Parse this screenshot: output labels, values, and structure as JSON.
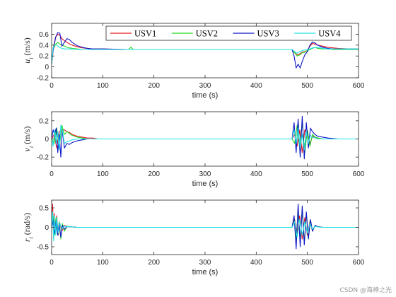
{
  "watermark": "CSDN @海神之光",
  "colors": {
    "USV1": "#e8141e",
    "USV2": "#22d622",
    "USV3": "#0b16c4",
    "USV4": "#22e3e8",
    "axes": "#262626"
  },
  "chart_data": [
    {
      "type": "line",
      "ylabel": "u_i (m/s)",
      "xlabel": "time (s)",
      "xlim": [
        0,
        600
      ],
      "ylim": [
        -0.2,
        0.8
      ],
      "xticks": [
        "0",
        "100",
        "200",
        "300",
        "400",
        "500",
        "600"
      ],
      "yticks": [
        "-0.2",
        "0",
        "0.2",
        "0.4",
        "0.6"
      ],
      "legend": {
        "location": "top-right",
        "orientation": "horizontal",
        "entries": [
          "USV1",
          "USV2",
          "USV3",
          "USV4"
        ]
      },
      "series": [
        {
          "name": "USV1",
          "x": [
            0,
            3,
            8,
            12,
            16,
            20,
            25,
            30,
            35,
            40,
            50,
            60,
            70,
            80,
            100,
            150,
            200,
            300,
            400,
            470,
            475,
            480,
            485,
            490,
            495,
            500,
            505,
            510,
            515,
            520,
            530,
            540,
            550,
            560,
            580,
            600
          ],
          "y": [
            0.05,
            0.35,
            0.55,
            0.6,
            0.58,
            0.52,
            0.48,
            0.45,
            0.42,
            0.4,
            0.37,
            0.35,
            0.34,
            0.33,
            0.33,
            0.32,
            0.32,
            0.32,
            0.32,
            0.32,
            0.26,
            0.22,
            0.24,
            0.27,
            0.28,
            0.3,
            0.38,
            0.43,
            0.42,
            0.4,
            0.38,
            0.36,
            0.35,
            0.34,
            0.33,
            0.33
          ]
        },
        {
          "name": "USV2",
          "x": [
            0,
            3,
            8,
            12,
            16,
            20,
            25,
            30,
            35,
            40,
            50,
            60,
            70,
            80,
            100,
            150,
            155,
            160,
            200,
            300,
            400,
            470,
            475,
            480,
            485,
            490,
            495,
            500,
            505,
            510,
            515,
            520,
            530,
            540,
            550,
            560,
            580,
            600
          ],
          "y": [
            0.05,
            0.33,
            0.42,
            0.45,
            0.42,
            0.4,
            0.38,
            0.36,
            0.35,
            0.34,
            0.33,
            0.32,
            0.32,
            0.32,
            0.32,
            0.32,
            0.36,
            0.32,
            0.32,
            0.32,
            0.32,
            0.32,
            0.26,
            0.2,
            0.22,
            0.26,
            0.27,
            0.3,
            0.32,
            0.34,
            0.36,
            0.34,
            0.33,
            0.33,
            0.32,
            0.32,
            0.32,
            0.32
          ]
        },
        {
          "name": "USV3",
          "x": [
            0,
            3,
            8,
            12,
            16,
            20,
            25,
            30,
            35,
            40,
            45,
            50,
            60,
            70,
            80,
            100,
            150,
            200,
            300,
            400,
            470,
            474,
            478,
            482,
            486,
            490,
            495,
            500,
            505,
            510,
            515,
            520,
            530,
            540,
            550,
            560,
            580,
            600
          ],
          "y": [
            0.05,
            0.3,
            0.55,
            0.63,
            0.62,
            0.38,
            0.45,
            0.52,
            0.5,
            0.45,
            0.42,
            0.39,
            0.36,
            0.34,
            0.33,
            0.33,
            0.32,
            0.32,
            0.32,
            0.32,
            0.32,
            0.2,
            -0.02,
            0.05,
            -0.02,
            0.1,
            0.22,
            0.28,
            0.4,
            0.46,
            0.44,
            0.4,
            0.36,
            0.34,
            0.33,
            0.33,
            0.33,
            0.33
          ]
        },
        {
          "name": "USV4",
          "x": [
            0,
            3,
            6,
            10,
            15,
            20,
            25,
            30,
            40,
            50,
            60,
            80,
            100,
            150,
            200,
            300,
            400,
            470,
            475,
            480,
            485,
            490,
            495,
            500,
            505,
            510,
            520,
            530,
            540,
            550,
            560,
            580,
            600
          ],
          "y": [
            0.05,
            0.35,
            0.42,
            0.4,
            0.36,
            0.34,
            0.33,
            0.33,
            0.33,
            0.32,
            0.32,
            0.32,
            0.32,
            0.32,
            0.32,
            0.32,
            0.32,
            0.32,
            0.28,
            0.25,
            0.28,
            0.3,
            0.31,
            0.32,
            0.33,
            0.35,
            0.36,
            0.34,
            0.33,
            0.33,
            0.33,
            0.33,
            0.33
          ]
        }
      ]
    },
    {
      "type": "line",
      "ylabel": "v_i (m/s)",
      "xlabel": "time (s)",
      "xlim": [
        0,
        600
      ],
      "ylim": [
        -0.3,
        0.3
      ],
      "xticks": [
        "0",
        "100",
        "200",
        "300",
        "400",
        "500",
        "600"
      ],
      "yticks": [
        "-0.2",
        "0",
        "0.2"
      ],
      "series": [
        {
          "name": "USV1",
          "x": [
            0,
            5,
            10,
            15,
            20,
            25,
            30,
            35,
            40,
            50,
            60,
            70,
            80,
            90,
            100,
            120,
            200,
            300,
            400,
            470,
            475,
            480,
            485,
            490,
            495,
            500,
            505,
            510,
            515,
            520,
            530,
            540,
            560,
            600
          ],
          "y": [
            0,
            0.05,
            -0.1,
            0.08,
            0.1,
            0.1,
            0.08,
            0.07,
            0.05,
            0.03,
            0.02,
            0.01,
            0.01,
            0.0,
            0.0,
            0.0,
            0.0,
            0.0,
            0.0,
            0.0,
            0.05,
            -0.08,
            0.1,
            -0.15,
            0.1,
            0.05,
            -0.05,
            0.03,
            0.02,
            0.01,
            0.0,
            0.0,
            0.0,
            0.0
          ]
        },
        {
          "name": "USV2",
          "x": [
            0,
            5,
            10,
            15,
            20,
            25,
            30,
            35,
            40,
            50,
            60,
            70,
            80,
            90,
            100,
            120,
            200,
            300,
            400,
            470,
            475,
            480,
            485,
            490,
            495,
            500,
            505,
            510,
            515,
            520,
            530,
            540,
            560,
            600
          ],
          "y": [
            0,
            -0.05,
            0.12,
            -0.1,
            0.15,
            0.05,
            0.08,
            0.06,
            0.04,
            0.02,
            0.01,
            0.0,
            0.0,
            0.0,
            0.0,
            0.0,
            0.0,
            0.0,
            0.0,
            0.0,
            -0.05,
            0.15,
            -0.1,
            0.18,
            -0.15,
            0.1,
            -0.08,
            0.05,
            0.02,
            0.01,
            0.0,
            0.0,
            0.0,
            0.0
          ]
        },
        {
          "name": "USV3",
          "x": [
            0,
            3,
            6,
            9,
            12,
            15,
            18,
            21,
            25,
            30,
            35,
            40,
            50,
            60,
            70,
            80,
            90,
            100,
            120,
            200,
            300,
            400,
            470,
            474,
            478,
            482,
            486,
            490,
            494,
            498,
            502,
            506,
            510,
            515,
            520,
            530,
            540,
            560,
            600
          ],
          "y": [
            0,
            0.1,
            0.05,
            0.12,
            -0.15,
            0.05,
            -0.2,
            0.1,
            -0.1,
            -0.05,
            -0.06,
            -0.04,
            -0.02,
            -0.01,
            0.0,
            0.0,
            0.0,
            0.0,
            0.0,
            0.0,
            0.0,
            0.0,
            0.0,
            0.18,
            -0.15,
            0.22,
            -0.2,
            0.25,
            -0.22,
            0.18,
            -0.1,
            0.12,
            0.08,
            0.05,
            0.03,
            0.02,
            0.01,
            0.0,
            0.0
          ]
        },
        {
          "name": "USV4",
          "x": [
            0,
            3,
            6,
            9,
            12,
            15,
            18,
            21,
            25,
            30,
            35,
            40,
            50,
            60,
            70,
            80,
            90,
            100,
            120,
            200,
            300,
            400,
            470,
            474,
            478,
            482,
            486,
            490,
            494,
            498,
            502,
            506,
            510,
            515,
            520,
            530,
            540,
            560,
            600
          ],
          "y": [
            0,
            -0.08,
            0.1,
            -0.05,
            0.08,
            -0.12,
            0.15,
            0.1,
            -0.05,
            -0.03,
            -0.02,
            -0.01,
            0.0,
            0.0,
            0.0,
            0.0,
            0.0,
            0.0,
            0.0,
            0.0,
            0.0,
            0.0,
            0.0,
            0.1,
            -0.05,
            0.12,
            -0.1,
            0.05,
            -0.12,
            0.08,
            -0.05,
            0.04,
            0.02,
            0.01,
            0.0,
            0.0,
            0.0,
            0.0,
            0.0
          ]
        }
      ]
    },
    {
      "type": "line",
      "ylabel": "r_i (rad/s)",
      "xlabel": "time (s)",
      "xlim": [
        0,
        600
      ],
      "ylim": [
        -0.7,
        0.7
      ],
      "xticks": [
        "0",
        "100",
        "200",
        "300",
        "400",
        "500",
        "600"
      ],
      "yticks": [
        "-0.5",
        "0",
        "0.5"
      ],
      "series": [
        {
          "name": "USV1",
          "x": [
            0,
            2,
            4,
            6,
            8,
            10,
            13,
            16,
            20,
            25,
            30,
            40,
            50,
            100,
            200,
            300,
            400,
            470,
            475,
            480,
            485,
            490,
            495,
            500,
            505,
            510,
            515,
            520,
            530,
            600
          ],
          "y": [
            0,
            0.6,
            -0.3,
            0.35,
            -0.15,
            0.3,
            -0.2,
            0.1,
            -0.1,
            0.05,
            0.02,
            0.01,
            0.0,
            0.0,
            0.0,
            0.0,
            0.0,
            0.0,
            0.2,
            -0.2,
            0.3,
            -0.3,
            0.25,
            -0.2,
            0.15,
            -0.1,
            0.05,
            0.02,
            0.0,
            0.0
          ]
        },
        {
          "name": "USV2",
          "x": [
            0,
            3,
            6,
            9,
            12,
            15,
            18,
            21,
            25,
            30,
            40,
            50,
            100,
            200,
            300,
            400,
            470,
            474,
            478,
            482,
            486,
            490,
            494,
            498,
            502,
            506,
            510,
            515,
            520,
            530,
            600
          ],
          "y": [
            0,
            0.3,
            -0.2,
            0.25,
            -0.2,
            0.15,
            -0.3,
            0.1,
            -0.1,
            0.03,
            0.01,
            0.0,
            0.0,
            0.0,
            0.0,
            0.0,
            0.0,
            0.25,
            -0.3,
            0.4,
            -0.35,
            0.45,
            -0.4,
            0.35,
            -0.3,
            0.2,
            -0.1,
            0.05,
            0.02,
            0.0,
            0.0
          ]
        },
        {
          "name": "USV3",
          "x": [
            0,
            3,
            6,
            9,
            12,
            15,
            18,
            21,
            25,
            30,
            40,
            50,
            100,
            200,
            300,
            400,
            470,
            474,
            478,
            482,
            486,
            490,
            494,
            498,
            502,
            506,
            510,
            515,
            520,
            530,
            600
          ],
          "y": [
            0,
            0.2,
            -0.15,
            0.15,
            -0.2,
            0.1,
            -0.25,
            0.05,
            -0.05,
            0.02,
            0.01,
            0.0,
            0.0,
            0.0,
            0.0,
            0.0,
            0.0,
            0.3,
            -0.55,
            0.6,
            -0.5,
            0.55,
            -0.45,
            0.4,
            -0.3,
            0.2,
            -0.1,
            0.05,
            0.02,
            0.0,
            0.0
          ]
        },
        {
          "name": "USV4",
          "x": [
            0,
            2,
            4,
            6,
            8,
            10,
            13,
            16,
            20,
            25,
            30,
            40,
            50,
            100,
            200,
            300,
            400,
            470,
            475,
            480,
            485,
            490,
            495,
            500,
            505,
            510,
            515,
            520,
            530,
            600
          ],
          "y": [
            0,
            0.4,
            -0.35,
            0.3,
            -0.2,
            0.25,
            -0.15,
            0.1,
            -0.05,
            0.03,
            0.02,
            0.01,
            0.0,
            0.0,
            0.0,
            0.0,
            0.0,
            0.0,
            0.15,
            -0.25,
            0.2,
            -0.2,
            0.15,
            -0.15,
            0.1,
            -0.05,
            0.03,
            0.01,
            0.0,
            0.0
          ]
        }
      ]
    }
  ]
}
